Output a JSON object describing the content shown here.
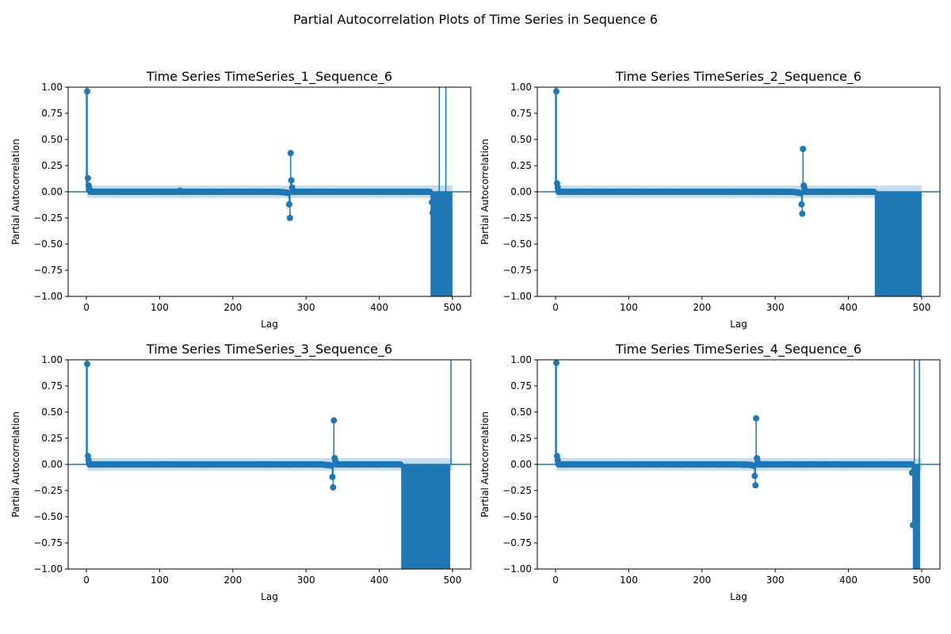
{
  "figure": {
    "suptitle": "Partial Autocorrelation Plots of Time Series in Sequence 6"
  },
  "colors": {
    "stem": "#1f77b4",
    "confidence_band": "#1f77b4",
    "axis": "#000000"
  },
  "chart_data": [
    {
      "type": "stem",
      "title": "Time Series TimeSeries_1_Sequence_6",
      "xlabel": "Lag",
      "ylabel": "Partial Autocorrelation",
      "xlim": [
        -25,
        525
      ],
      "ylim": [
        -1.0,
        1.0
      ],
      "xticks": [
        0,
        100,
        200,
        300,
        400,
        500
      ],
      "yticks": [
        -1.0,
        -0.75,
        -0.5,
        -0.25,
        0.0,
        0.25,
        0.5,
        0.75,
        1.0
      ],
      "ytick_labels": [
        "−1.00",
        "−0.75",
        "−0.50",
        "−0.25",
        "0.00",
        "0.25",
        "0.50",
        "0.75",
        "1.00"
      ],
      "confidence_band": [
        -0.06,
        0.06
      ],
      "peaks": [
        {
          "lag": 0,
          "value": 1.0
        },
        {
          "lag": 1,
          "value": 0.96
        },
        {
          "lag": 2,
          "value": 0.13
        },
        {
          "lag": 3,
          "value": 0.06
        },
        {
          "lag": 4,
          "value": 0.03
        },
        {
          "lag": 128,
          "value": 0.01
        },
        {
          "lag": 277,
          "value": -0.12
        },
        {
          "lag": 278,
          "value": -0.25
        },
        {
          "lag": 279,
          "value": 0.37
        },
        {
          "lag": 280,
          "value": 0.11
        },
        {
          "lag": 281,
          "value": 0.04
        },
        {
          "lag": 472,
          "value": -0.1
        },
        {
          "lag": 473,
          "value": -0.2
        },
        {
          "lag": 482,
          "value": 1.0
        },
        {
          "lag": 491,
          "value": 1.0
        }
      ],
      "band_fill": {
        "from_lag": 470,
        "to_lag": 500,
        "value": -1.0
      },
      "dip_center": 277,
      "noise_end": 470
    },
    {
      "type": "stem",
      "title": "Time Series TimeSeries_2_Sequence_6",
      "xlabel": "Lag",
      "ylabel": "Partial Autocorrelation",
      "xlim": [
        -25,
        525
      ],
      "ylim": [
        -1.0,
        1.0
      ],
      "xticks": [
        0,
        100,
        200,
        300,
        400,
        500
      ],
      "yticks": [
        -1.0,
        -0.75,
        -0.5,
        -0.25,
        0.0,
        0.25,
        0.5,
        0.75,
        1.0
      ],
      "ytick_labels": [
        "−1.00",
        "−0.75",
        "−0.50",
        "−0.25",
        "0.00",
        "0.25",
        "0.50",
        "0.75",
        "1.00"
      ],
      "confidence_band": [
        -0.06,
        0.06
      ],
      "peaks": [
        {
          "lag": 0,
          "value": 1.0
        },
        {
          "lag": 1,
          "value": 0.96
        },
        {
          "lag": 2,
          "value": 0.08
        },
        {
          "lag": 3,
          "value": 0.04
        },
        {
          "lag": 336,
          "value": -0.12
        },
        {
          "lag": 337,
          "value": -0.21
        },
        {
          "lag": 338,
          "value": 0.41
        },
        {
          "lag": 339,
          "value": 0.06
        },
        {
          "lag": 340,
          "value": 0.03
        }
      ],
      "band_fill": {
        "from_lag": 436,
        "to_lag": 500,
        "value": -1.0
      },
      "dip_center": 336,
      "noise_end": 436
    },
    {
      "type": "stem",
      "title": "Time Series TimeSeries_3_Sequence_6",
      "xlabel": "Lag",
      "ylabel": "Partial Autocorrelation",
      "xlim": [
        -25,
        525
      ],
      "ylim": [
        -1.0,
        1.0
      ],
      "xticks": [
        0,
        100,
        200,
        300,
        400,
        500
      ],
      "yticks": [
        -1.0,
        -0.75,
        -0.5,
        -0.25,
        0.0,
        0.25,
        0.5,
        0.75,
        1.0
      ],
      "ytick_labels": [
        "−1.00",
        "−0.75",
        "−0.50",
        "−0.25",
        "0.00",
        "0.25",
        "0.50",
        "0.75",
        "1.00"
      ],
      "confidence_band": [
        -0.06,
        0.06
      ],
      "peaks": [
        {
          "lag": 0,
          "value": 1.0
        },
        {
          "lag": 1,
          "value": 0.96
        },
        {
          "lag": 2,
          "value": 0.08
        },
        {
          "lag": 3,
          "value": 0.04
        },
        {
          "lag": 336,
          "value": -0.12
        },
        {
          "lag": 337,
          "value": -0.22
        },
        {
          "lag": 338,
          "value": 0.42
        },
        {
          "lag": 339,
          "value": 0.06
        },
        {
          "lag": 340,
          "value": 0.03
        },
        {
          "lag": 498,
          "value": 1.0
        }
      ],
      "band_fill": {
        "from_lag": 430,
        "to_lag": 497,
        "value": -1.0
      },
      "dip_center": 336,
      "noise_end": 430
    },
    {
      "type": "stem",
      "title": "Time Series TimeSeries_4_Sequence_6",
      "xlabel": "Lag",
      "ylabel": "Partial Autocorrelation",
      "xlim": [
        -25,
        525
      ],
      "ylim": [
        -1.0,
        1.0
      ],
      "xticks": [
        0,
        100,
        200,
        300,
        400,
        500
      ],
      "yticks": [
        -1.0,
        -0.75,
        -0.5,
        -0.25,
        0.0,
        0.25,
        0.5,
        0.75,
        1.0
      ],
      "ytick_labels": [
        "−1.00",
        "−0.75",
        "−0.50",
        "−0.25",
        "0.00",
        "0.25",
        "0.50",
        "0.75",
        "1.00"
      ],
      "confidence_band": [
        -0.06,
        0.06
      ],
      "peaks": [
        {
          "lag": 0,
          "value": 1.0
        },
        {
          "lag": 1,
          "value": 0.97
        },
        {
          "lag": 2,
          "value": 0.08
        },
        {
          "lag": 3,
          "value": 0.04
        },
        {
          "lag": 272,
          "value": -0.11
        },
        {
          "lag": 273,
          "value": -0.2
        },
        {
          "lag": 274,
          "value": 0.44
        },
        {
          "lag": 275,
          "value": 0.06
        },
        {
          "lag": 276,
          "value": 0.03
        },
        {
          "lag": 487,
          "value": -0.08
        },
        {
          "lag": 488,
          "value": -0.58
        },
        {
          "lag": 490,
          "value": 1.0
        },
        {
          "lag": 497,
          "value": 1.0
        }
      ],
      "band_fill": {
        "from_lag": 488,
        "to_lag": 498,
        "value": -1.0
      },
      "dip_center": 272,
      "noise_end": 488
    }
  ]
}
